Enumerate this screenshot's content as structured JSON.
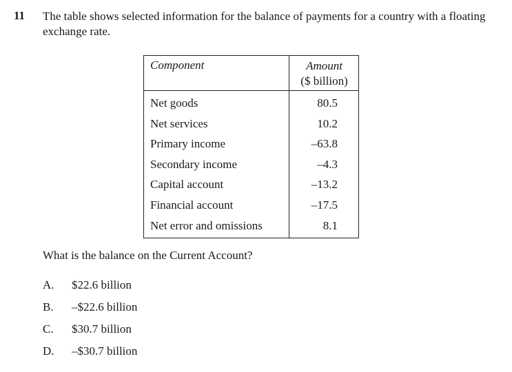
{
  "question": {
    "number": "11",
    "stem": "The table shows selected information for the balance of payments for a country with a floating exchange rate.",
    "prompt": "What is the balance on the Current Account?"
  },
  "table": {
    "header_component": "Component",
    "header_amount": "Amount",
    "header_unit": "($ billion)",
    "rows": [
      {
        "component": "Net goods",
        "amount": "80.5"
      },
      {
        "component": "Net services",
        "amount": "10.2"
      },
      {
        "component": "Primary income",
        "amount": "–63.8"
      },
      {
        "component": "Secondary income",
        "amount": "–4.3"
      },
      {
        "component": "Capital account",
        "amount": "–13.2"
      },
      {
        "component": "Financial account",
        "amount": "–17.5"
      },
      {
        "component": "Net error and omissions",
        "amount": "8.1"
      }
    ]
  },
  "options": [
    {
      "letter": "A.",
      "text": "$22.6 billion"
    },
    {
      "letter": "B.",
      "text": "–$22.6 billion"
    },
    {
      "letter": "C.",
      "text": "$30.7 billion"
    },
    {
      "letter": "D.",
      "text": "–$30.7 billion"
    }
  ]
}
